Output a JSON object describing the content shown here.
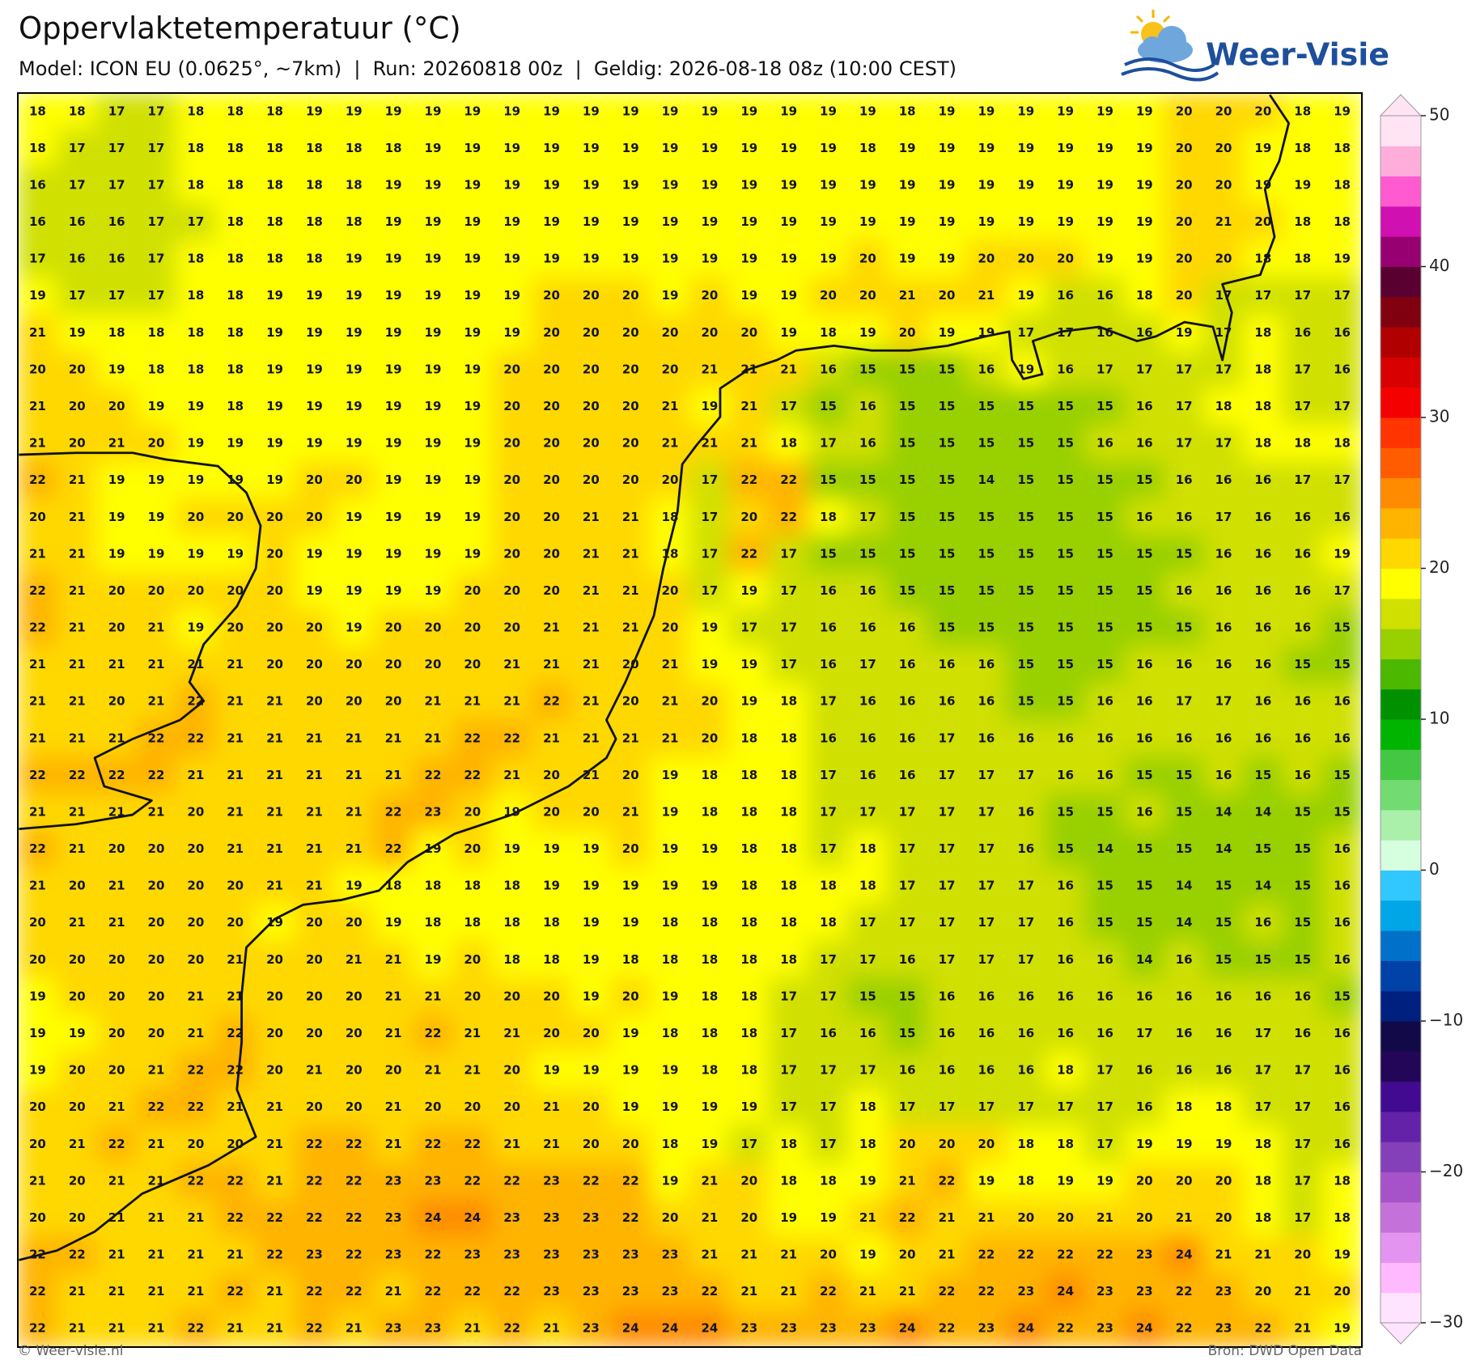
{
  "header": {
    "title": "Oppervlaktetemperatuur (°C)",
    "subtitle": "Model: ICON EU (0.0625°, ~7km)  |  Run: 20260818 00z  |  Geldig: 2026-08-18 08z (10:00 CEST)",
    "logo": "Weer-Visie"
  },
  "colorbar": {
    "range": [
      -30,
      50
    ],
    "colors": [
      "#ffe4ff",
      "#ffbaff",
      "#e294f0",
      "#c472da",
      "#a652c8",
      "#8440b8",
      "#6422a8",
      "#420a90",
      "#240658",
      "#120a48",
      "#002080",
      "#0042a8",
      "#0070c8",
      "#00a6e6",
      "#30c8ff",
      "#d6ffe0",
      "#aaf0aa",
      "#72dc72",
      "#44c844",
      "#00b400",
      "#009000",
      "#4cb800",
      "#98d000",
      "#d0e000",
      "#ffff00",
      "#ffd800",
      "#ffb400",
      "#ff8c00",
      "#ff5c00",
      "#ff3400",
      "#f40000",
      "#d80000",
      "#b00000",
      "#800010",
      "#5a0030",
      "#960070",
      "#d010b0",
      "#ff5ad0",
      "#ffaedc",
      "#ffe4f4"
    ],
    "ticks": [
      50,
      40,
      30,
      20,
      10,
      0,
      {
        "value": -10,
        "label": "−10"
      },
      {
        "value": -20,
        "label": "−20"
      },
      {
        "value": -30,
        "label": "−30"
      }
    ]
  },
  "grid": [
    [
      18,
      18,
      17,
      17,
      18,
      18,
      18,
      19,
      19,
      19,
      19,
      19,
      19,
      19,
      19,
      19,
      19,
      19,
      19,
      19,
      19,
      19,
      18,
      19,
      19,
      19,
      19,
      19,
      19,
      20,
      20,
      20,
      18,
      19
    ],
    [
      18,
      17,
      17,
      17,
      18,
      18,
      18,
      18,
      18,
      18,
      19,
      19,
      19,
      19,
      19,
      19,
      19,
      19,
      19,
      19,
      19,
      18,
      19,
      19,
      19,
      19,
      19,
      19,
      19,
      20,
      20,
      19,
      18,
      18
    ],
    [
      16,
      17,
      17,
      17,
      18,
      18,
      18,
      18,
      18,
      19,
      19,
      19,
      19,
      19,
      19,
      19,
      19,
      19,
      19,
      19,
      19,
      19,
      19,
      19,
      19,
      19,
      19,
      19,
      19,
      20,
      20,
      19,
      19,
      18
    ],
    [
      16,
      16,
      16,
      17,
      17,
      18,
      18,
      18,
      18,
      19,
      19,
      19,
      19,
      19,
      19,
      19,
      19,
      19,
      19,
      19,
      19,
      19,
      19,
      19,
      19,
      19,
      19,
      19,
      19,
      20,
      21,
      20,
      18,
      18
    ],
    [
      17,
      16,
      16,
      17,
      18,
      18,
      18,
      18,
      19,
      19,
      19,
      19,
      19,
      19,
      19,
      19,
      19,
      19,
      19,
      19,
      19,
      20,
      19,
      19,
      20,
      20,
      20,
      19,
      19,
      20,
      20,
      18,
      18,
      19
    ],
    [
      19,
      17,
      17,
      17,
      18,
      18,
      19,
      19,
      19,
      19,
      19,
      19,
      19,
      20,
      20,
      20,
      19,
      20,
      19,
      19,
      20,
      20,
      21,
      20,
      21,
      19,
      16,
      16,
      18,
      20,
      17,
      17,
      17,
      17
    ],
    [
      21,
      19,
      18,
      18,
      18,
      18,
      19,
      19,
      19,
      19,
      19,
      19,
      19,
      20,
      20,
      20,
      20,
      20,
      20,
      19,
      18,
      19,
      20,
      19,
      19,
      17,
      17,
      16,
      16,
      19,
      17,
      18,
      16,
      16
    ],
    [
      20,
      20,
      19,
      18,
      18,
      18,
      19,
      19,
      19,
      19,
      19,
      19,
      20,
      20,
      20,
      20,
      20,
      21,
      21,
      21,
      16,
      15,
      15,
      15,
      16,
      19,
      16,
      17,
      17,
      17,
      17,
      18,
      17,
      16
    ],
    [
      21,
      20,
      20,
      19,
      19,
      18,
      19,
      19,
      19,
      19,
      19,
      19,
      20,
      20,
      20,
      20,
      21,
      19,
      21,
      17,
      15,
      16,
      15,
      15,
      15,
      15,
      15,
      15,
      16,
      17,
      18,
      18,
      17,
      17
    ],
    [
      21,
      20,
      21,
      20,
      19,
      19,
      19,
      19,
      19,
      19,
      19,
      19,
      20,
      20,
      20,
      20,
      21,
      21,
      21,
      18,
      17,
      16,
      15,
      15,
      15,
      15,
      15,
      16,
      16,
      17,
      17,
      18,
      18,
      18
    ],
    [
      22,
      21,
      19,
      19,
      19,
      19,
      19,
      20,
      20,
      19,
      19,
      19,
      20,
      20,
      20,
      20,
      20,
      17,
      22,
      22,
      15,
      15,
      15,
      15,
      14,
      15,
      15,
      15,
      15,
      16,
      16,
      16,
      17,
      17
    ],
    [
      20,
      21,
      19,
      19,
      20,
      20,
      20,
      20,
      19,
      19,
      19,
      19,
      20,
      20,
      21,
      21,
      18,
      17,
      20,
      22,
      18,
      17,
      15,
      15,
      15,
      15,
      15,
      15,
      16,
      16,
      17,
      16,
      16,
      16
    ],
    [
      21,
      21,
      19,
      19,
      19,
      19,
      20,
      19,
      19,
      19,
      19,
      19,
      20,
      20,
      21,
      21,
      18,
      17,
      22,
      17,
      15,
      15,
      15,
      15,
      15,
      15,
      15,
      15,
      15,
      15,
      16,
      16,
      16,
      19
    ],
    [
      22,
      21,
      20,
      20,
      20,
      20,
      20,
      19,
      19,
      19,
      19,
      20,
      20,
      20,
      21,
      21,
      20,
      17,
      19,
      17,
      16,
      16,
      15,
      15,
      15,
      15,
      15,
      15,
      15,
      16,
      16,
      16,
      16,
      17
    ],
    [
      22,
      21,
      20,
      21,
      19,
      20,
      20,
      20,
      19,
      20,
      20,
      20,
      20,
      21,
      21,
      21,
      20,
      19,
      17,
      17,
      16,
      16,
      16,
      15,
      15,
      15,
      15,
      15,
      15,
      15,
      16,
      16,
      16,
      15
    ],
    [
      21,
      21,
      21,
      21,
      21,
      21,
      20,
      20,
      20,
      20,
      20,
      20,
      21,
      21,
      21,
      20,
      21,
      19,
      19,
      17,
      16,
      17,
      16,
      16,
      16,
      15,
      15,
      15,
      16,
      16,
      16,
      16,
      15,
      15
    ],
    [
      21,
      21,
      20,
      21,
      22,
      21,
      21,
      20,
      20,
      20,
      21,
      21,
      21,
      22,
      21,
      20,
      21,
      20,
      19,
      18,
      17,
      16,
      16,
      16,
      16,
      15,
      15,
      16,
      16,
      17,
      17,
      16,
      16,
      16
    ],
    [
      21,
      21,
      21,
      22,
      22,
      21,
      21,
      21,
      21,
      21,
      21,
      22,
      22,
      21,
      21,
      21,
      21,
      20,
      18,
      18,
      16,
      16,
      16,
      17,
      16,
      16,
      16,
      16,
      16,
      16,
      16,
      16,
      16,
      16
    ],
    [
      22,
      22,
      22,
      22,
      21,
      21,
      21,
      21,
      21,
      21,
      22,
      22,
      21,
      20,
      21,
      20,
      19,
      18,
      18,
      18,
      17,
      16,
      16,
      17,
      17,
      17,
      16,
      16,
      15,
      15,
      16,
      15,
      16,
      15
    ],
    [
      21,
      21,
      21,
      21,
      20,
      21,
      21,
      21,
      21,
      22,
      23,
      20,
      19,
      20,
      20,
      21,
      19,
      18,
      18,
      18,
      17,
      17,
      17,
      17,
      17,
      16,
      15,
      15,
      16,
      15,
      14,
      14,
      15,
      15
    ],
    [
      22,
      21,
      20,
      20,
      20,
      21,
      21,
      21,
      21,
      22,
      19,
      20,
      19,
      19,
      19,
      20,
      19,
      19,
      18,
      18,
      17,
      18,
      17,
      17,
      17,
      16,
      15,
      14,
      15,
      15,
      14,
      15,
      15,
      16
    ],
    [
      21,
      20,
      21,
      20,
      20,
      20,
      21,
      21,
      19,
      18,
      18,
      18,
      18,
      19,
      19,
      19,
      19,
      19,
      18,
      18,
      18,
      18,
      17,
      17,
      17,
      17,
      16,
      15,
      15,
      14,
      15,
      14,
      15,
      16
    ],
    [
      20,
      21,
      21,
      20,
      20,
      20,
      19,
      20,
      20,
      19,
      18,
      18,
      18,
      18,
      19,
      19,
      18,
      18,
      18,
      18,
      18,
      17,
      17,
      17,
      17,
      17,
      16,
      15,
      15,
      14,
      15,
      16,
      15,
      16
    ],
    [
      20,
      20,
      20,
      20,
      20,
      21,
      20,
      20,
      21,
      21,
      19,
      20,
      18,
      18,
      19,
      18,
      18,
      18,
      18,
      18,
      17,
      17,
      16,
      17,
      17,
      17,
      16,
      16,
      14,
      16,
      15,
      15,
      15,
      16
    ],
    [
      19,
      20,
      20,
      20,
      21,
      21,
      20,
      20,
      20,
      21,
      21,
      20,
      20,
      20,
      19,
      20,
      19,
      18,
      18,
      17,
      17,
      15,
      15,
      16,
      16,
      16,
      16,
      16,
      16,
      16,
      16,
      16,
      16,
      15
    ],
    [
      19,
      19,
      20,
      20,
      21,
      22,
      20,
      20,
      20,
      21,
      22,
      21,
      21,
      20,
      20,
      19,
      18,
      18,
      18,
      17,
      16,
      16,
      15,
      16,
      16,
      16,
      16,
      16,
      17,
      16,
      16,
      17,
      16,
      16
    ],
    [
      19,
      20,
      20,
      21,
      22,
      22,
      20,
      21,
      20,
      20,
      21,
      21,
      20,
      19,
      19,
      19,
      19,
      18,
      18,
      17,
      17,
      17,
      16,
      16,
      16,
      16,
      18,
      17,
      16,
      16,
      16,
      17,
      17,
      16
    ],
    [
      20,
      20,
      21,
      22,
      22,
      21,
      21,
      20,
      20,
      21,
      20,
      20,
      20,
      21,
      20,
      19,
      19,
      19,
      19,
      17,
      17,
      18,
      17,
      17,
      17,
      17,
      17,
      17,
      16,
      18,
      18,
      17,
      17,
      16
    ],
    [
      20,
      21,
      22,
      21,
      20,
      20,
      21,
      22,
      22,
      21,
      22,
      22,
      21,
      21,
      20,
      20,
      18,
      19,
      17,
      18,
      17,
      18,
      20,
      20,
      20,
      18,
      18,
      17,
      19,
      19,
      19,
      18,
      17,
      16
    ],
    [
      21,
      20,
      21,
      21,
      22,
      22,
      21,
      22,
      22,
      23,
      23,
      22,
      22,
      23,
      22,
      22,
      19,
      21,
      20,
      18,
      18,
      19,
      21,
      22,
      19,
      18,
      19,
      19,
      20,
      20,
      20,
      18,
      17,
      18
    ],
    [
      20,
      20,
      21,
      21,
      21,
      22,
      22,
      22,
      22,
      23,
      24,
      24,
      23,
      23,
      23,
      22,
      20,
      21,
      20,
      19,
      19,
      21,
      22,
      21,
      21,
      20,
      20,
      21,
      20,
      21,
      20,
      18,
      17,
      18
    ],
    [
      22,
      22,
      21,
      21,
      21,
      21,
      22,
      23,
      22,
      23,
      22,
      23,
      23,
      23,
      23,
      23,
      23,
      21,
      21,
      21,
      20,
      19,
      20,
      21,
      22,
      22,
      22,
      22,
      23,
      24,
      21,
      21,
      20,
      19
    ],
    [
      22,
      21,
      21,
      21,
      21,
      22,
      21,
      22,
      22,
      21,
      22,
      22,
      22,
      23,
      23,
      23,
      23,
      22,
      21,
      21,
      22,
      21,
      21,
      22,
      22,
      23,
      24,
      23,
      23,
      22,
      23,
      20,
      21,
      20
    ],
    [
      22,
      21,
      21,
      21,
      22,
      21,
      21,
      22,
      21,
      23,
      23,
      21,
      22,
      21,
      23,
      24,
      24,
      24,
      23,
      23,
      23,
      23,
      24,
      22,
      23,
      24,
      22,
      23,
      24,
      22,
      23,
      22,
      21,
      19
    ]
  ],
  "footer": {
    "left": "© Weer-visie.nl",
    "right": "Bron: DWD Open Data"
  }
}
